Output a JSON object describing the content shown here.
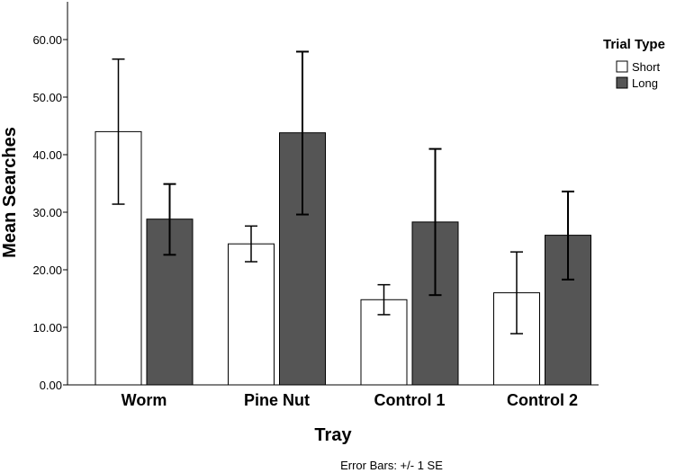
{
  "chart_data": {
    "type": "bar",
    "title": "",
    "xlabel": "Tray",
    "ylabel": "Mean Searches",
    "ylim": [
      0,
      65
    ],
    "yticks": [
      0,
      10,
      20,
      30,
      40,
      50,
      60
    ],
    "ytick_labels": [
      "0.00",
      "10.00",
      "20.00",
      "30.00",
      "40.00",
      "50.00",
      "60.00"
    ],
    "categories": [
      "Worm",
      "Pine Nut",
      "Control 1",
      "Control 2"
    ],
    "series": [
      {
        "name": "Short",
        "color": "#ffffff",
        "values": [
          44.0,
          24.5,
          14.8,
          16.0
        ],
        "error_low": [
          31.4,
          21.4,
          12.2,
          8.9
        ],
        "error_high": [
          56.6,
          27.6,
          17.4,
          23.1
        ]
      },
      {
        "name": "Long",
        "color": "#555555",
        "values": [
          28.8,
          43.8,
          28.3,
          26.0
        ],
        "error_low": [
          22.6,
          29.6,
          15.6,
          18.3
        ],
        "error_high": [
          34.9,
          57.9,
          41.0,
          33.6
        ]
      }
    ],
    "legend": {
      "title": "Trial Type",
      "position": "top-right"
    },
    "grid": false,
    "note": "Error Bars: +/- 1 SE"
  }
}
